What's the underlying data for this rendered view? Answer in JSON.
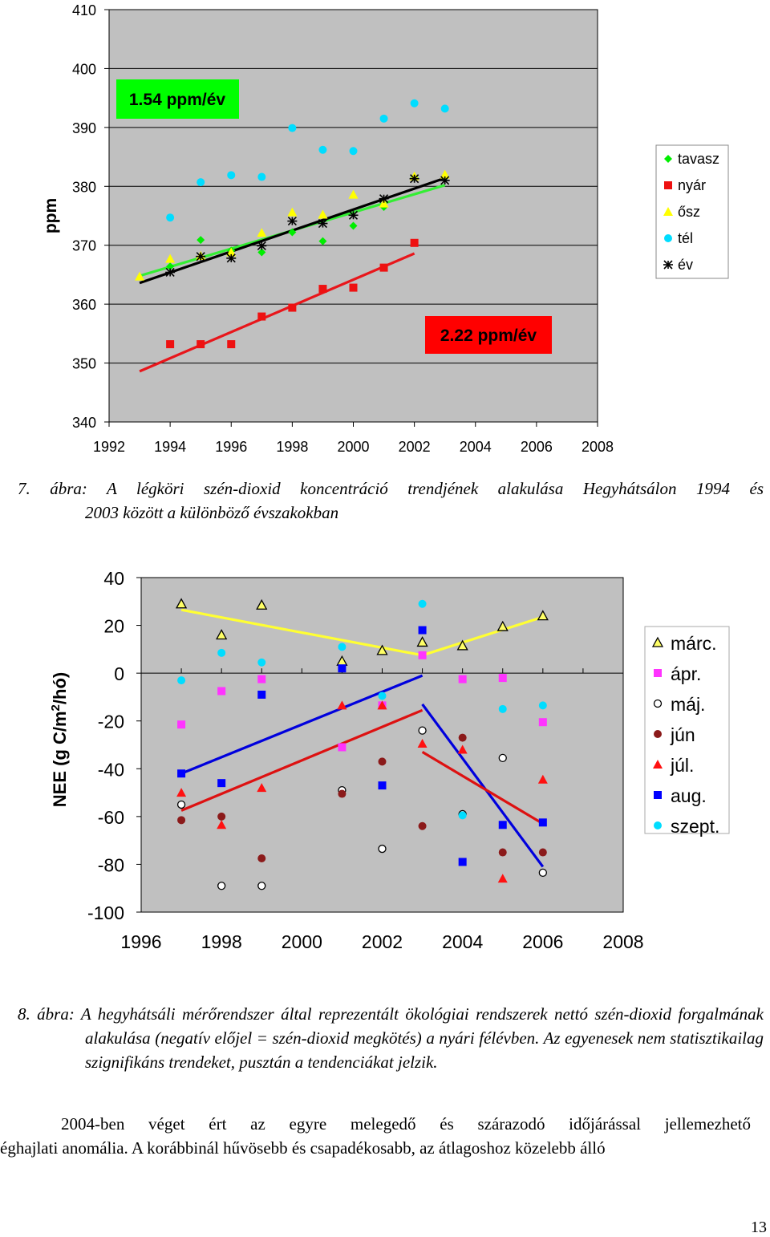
{
  "chart_data": [
    {
      "type": "scatter",
      "title": "",
      "xlabel": "",
      "ylabel": "ppm",
      "xlim": [
        1992,
        2008
      ],
      "ylim": [
        340,
        410
      ],
      "xticks": [
        1992,
        1994,
        1996,
        1998,
        2000,
        2002,
        2004,
        2006,
        2008
      ],
      "yticks": [
        340,
        350,
        360,
        370,
        380,
        390,
        400,
        410
      ],
      "grid": "horizontal",
      "legend_position": "right",
      "annotations": [
        {
          "text": "1.54 ppm/év",
          "x": 1994.5,
          "y": 395,
          "bg": "#00ff00"
        },
        {
          "text": "2.22 ppm/év",
          "x": 2003.5,
          "y": 355,
          "bg": "#ff0000"
        }
      ],
      "series": [
        {
          "name": "tavasz",
          "color": "#00ee00",
          "marker": "diamond",
          "points": [
            [
              1994,
              366.4
            ],
            [
              1995,
              370.9
            ],
            [
              1996,
              369.1
            ],
            [
              1997,
              368.8
            ],
            [
              1998,
              372.2
            ],
            [
              1999,
              370.7
            ],
            [
              2000,
              373.3
            ],
            [
              2001,
              376.5
            ],
            [
              2002,
              381.5
            ],
            [
              2003,
              381.5
            ]
          ]
        },
        {
          "name": "nyár",
          "color": "#ee1111",
          "marker": "square",
          "points": [
            [
              1994,
              353.2
            ],
            [
              1995,
              353.2
            ],
            [
              1996,
              353.2
            ],
            [
              1997,
              357.9
            ],
            [
              1998,
              359.4
            ],
            [
              1999,
              362.6
            ],
            [
              2000,
              362.8
            ],
            [
              2001,
              366.2
            ],
            [
              2002,
              370.4
            ]
          ]
        },
        {
          "name": "ősz",
          "color": "#ffff00",
          "marker": "triangle",
          "points": [
            [
              1993,
              364.7
            ],
            [
              1994,
              367.7
            ],
            [
              1995,
              368.2
            ],
            [
              1996,
              368.8
            ],
            [
              1997,
              372.1
            ],
            [
              1998,
              375.6
            ],
            [
              1999,
              375.2
            ],
            [
              2000,
              378.6
            ],
            [
              2001,
              377.1
            ],
            [
              2002,
              381.7
            ],
            [
              2003,
              382.0
            ]
          ]
        },
        {
          "name": "tél",
          "color": "#00ddff",
          "marker": "circle",
          "points": [
            [
              1994,
              374.7
            ],
            [
              1995,
              380.7
            ],
            [
              1996,
              381.9
            ],
            [
              1997,
              381.6
            ],
            [
              1998,
              389.9
            ],
            [
              1999,
              386.2
            ],
            [
              2000,
              386.0
            ],
            [
              2001,
              391.5
            ],
            [
              2002,
              394.1
            ],
            [
              2003,
              393.2
            ]
          ]
        },
        {
          "name": "év",
          "color": "#000000",
          "marker": "asterisk",
          "points": [
            [
              1994,
              365.4
            ],
            [
              1995,
              368.1
            ],
            [
              1996,
              367.8
            ],
            [
              1997,
              369.9
            ],
            [
              1998,
              374.1
            ],
            [
              1999,
              373.7
            ],
            [
              2000,
              375.1
            ],
            [
              2001,
              377.9
            ],
            [
              2002,
              381.3
            ],
            [
              2003,
              381.0
            ]
          ]
        }
      ],
      "trendlines": [
        {
          "series": "tavasz",
          "color": "#33ee33",
          "from": [
            1993,
            364.8
          ],
          "to": [
            2003,
            380.2
          ]
        },
        {
          "series": "év",
          "color": "#000000",
          "from": [
            1993,
            363.6
          ],
          "to": [
            2003,
            381.4
          ]
        },
        {
          "series": "nyár",
          "color": "#e8161b",
          "from": [
            1993,
            348.6
          ],
          "to": [
            2002,
            368.6
          ]
        }
      ]
    },
    {
      "type": "scatter",
      "title": "",
      "xlabel": "",
      "ylabel": "NEE (g C/m2/hó)",
      "xlim": [
        1996,
        2008
      ],
      "ylim": [
        -100,
        40
      ],
      "xticks": [
        1996,
        1998,
        2000,
        2002,
        2004,
        2006,
        2008
      ],
      "yticks": [
        -100,
        -80,
        -60,
        -40,
        -20,
        0,
        20,
        40
      ],
      "grid": "none",
      "legend_position": "right",
      "series": [
        {
          "name": "márc.",
          "color": "#ffff66",
          "marker": "triangle-open",
          "points": [
            [
              1997,
              29
            ],
            [
              1998,
              16
            ],
            [
              1999,
              28.5
            ],
            [
              2001,
              5
            ],
            [
              2002,
              9.5
            ],
            [
              2003,
              13
            ],
            [
              2004,
              11.5
            ],
            [
              2005,
              19.5
            ],
            [
              2006,
              24
            ]
          ]
        },
        {
          "name": "ápr.",
          "color": "#ff33ff",
          "marker": "square",
          "points": [
            [
              1997,
              -21.5
            ],
            [
              1998,
              -7.5
            ],
            [
              1999,
              -2.5
            ],
            [
              2001,
              -31
            ],
            [
              2002,
              -13.5
            ],
            [
              2003,
              7.5
            ],
            [
              2004,
              -2.5
            ],
            [
              2005,
              -2
            ],
            [
              2006,
              -20.5
            ]
          ]
        },
        {
          "name": "máj.",
          "color": "#ffffff",
          "marker": "circle-open",
          "points": [
            [
              1997,
              -55
            ],
            [
              1998,
              -89
            ],
            [
              1999,
              -89
            ],
            [
              2001,
              -49
            ],
            [
              2002,
              -73.5
            ],
            [
              2003,
              -24
            ],
            [
              2004,
              -59
            ],
            [
              2005,
              -35.5
            ],
            [
              2006,
              -83.5
            ]
          ]
        },
        {
          "name": "jún",
          "color": "#8b1a1a",
          "marker": "circle",
          "points": [
            [
              1997,
              -61.5
            ],
            [
              1998,
              -60
            ],
            [
              1999,
              -77.5
            ],
            [
              2001,
              -50.5
            ],
            [
              2002,
              -37
            ],
            [
              2003,
              -64
            ],
            [
              2004,
              -27
            ],
            [
              2005,
              -75
            ],
            [
              2006,
              -75
            ]
          ]
        },
        {
          "name": "júl.",
          "color": "#ff1111",
          "marker": "triangle",
          "points": [
            [
              1997,
              -50
            ],
            [
              1998,
              -63.5
            ],
            [
              1999,
              -48
            ],
            [
              2001,
              -13.5
            ],
            [
              2002,
              -13.5
            ],
            [
              2003,
              -29.5
            ],
            [
              2004,
              -32
            ],
            [
              2005,
              -86
            ],
            [
              2006,
              -44.5
            ]
          ]
        },
        {
          "name": "aug.",
          "color": "#0000ff",
          "marker": "square",
          "points": [
            [
              1997,
              -42
            ],
            [
              1998,
              -46
            ],
            [
              1999,
              -9
            ],
            [
              2001,
              2
            ],
            [
              2002,
              -47
            ],
            [
              2003,
              18
            ],
            [
              2004,
              -79
            ],
            [
              2005,
              -63.5
            ],
            [
              2006,
              -62.5
            ]
          ]
        },
        {
          "name": "szept.",
          "color": "#00ddff",
          "marker": "circle",
          "points": [
            [
              1997,
              -3
            ],
            [
              1998,
              8.5
            ],
            [
              1999,
              4.5
            ],
            [
              2001,
              11
            ],
            [
              2002,
              -9.5
            ],
            [
              2003,
              29
            ],
            [
              2004,
              -59.5
            ],
            [
              2005,
              -15
            ],
            [
              2006,
              -13.5
            ]
          ]
        }
      ],
      "trendlines": [
        {
          "series": "márc.",
          "color": "#ffff33",
          "from": [
            1997,
            26.5
          ],
          "to": [
            2003,
            7.5
          ]
        },
        {
          "series": "márc.",
          "color": "#ffff33",
          "from": [
            2003,
            7.5
          ],
          "to": [
            2006,
            23.5
          ]
        },
        {
          "series": "aug.",
          "color": "#0000dd",
          "from": [
            1997,
            -42
          ],
          "to": [
            2003,
            -1
          ]
        },
        {
          "series": "aug.",
          "color": "#0000dd",
          "from": [
            2003,
            -13
          ],
          "to": [
            2006,
            -81
          ]
        },
        {
          "series": "júl.",
          "color": "#dd1111",
          "from": [
            1997,
            -57.5
          ],
          "to": [
            2003,
            -15.5
          ]
        },
        {
          "series": "júl.",
          "color": "#dd1111",
          "from": [
            2003,
            -33
          ],
          "to": [
            2006,
            -63
          ]
        }
      ]
    }
  ],
  "captions": {
    "fig7_line1": "7. ábra: A légköri szén-dioxid koncentráció trendjének alakulása Hegyhátsálon 1994 és",
    "fig7_line2": "2003 között a különböző évszakokban",
    "fig8_text": "8. ábra: A hegyhátsáli mérőrendszer által reprezentált ökológiai rendszerek nettó szén-dioxid forgalmának alakulása (negatív előjel = szén-dioxid megkötés) a nyári félévben. Az egyenesek nem statisztikailag szignifikáns trendeket, pusztán a tendenciákat jelzik."
  },
  "body_text": {
    "line1": "2004-ben véget ért az egyre melegedő és szárazodó időjárással jellemezhető",
    "line2": "éghajlati anomália. A korábbinál hűvösebb és csapadékosabb, az átlagoshoz közelebb álló"
  },
  "page_number": "13"
}
